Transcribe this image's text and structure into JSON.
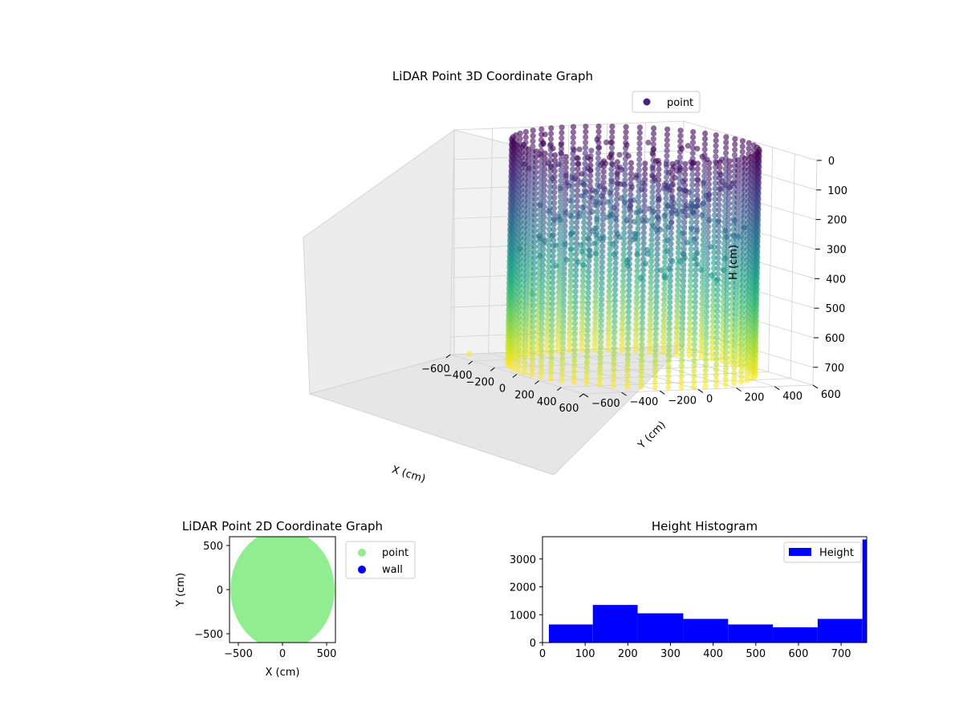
{
  "chart_data": [
    {
      "type": "scatter3d",
      "title": "LiDAR Point 3D Coordinate Graph",
      "xlabel": "X (cm)",
      "ylabel": "Y (cm)",
      "zlabel": "H (cm)",
      "xlim": [
        -600,
        600
      ],
      "ylim": [
        -600,
        600
      ],
      "zlim": [
        0,
        760
      ],
      "z_inverted": true,
      "xticks": [
        -600,
        -400,
        -200,
        0,
        200,
        400,
        600
      ],
      "yticks": [
        -600,
        -400,
        -200,
        0,
        200,
        400,
        600
      ],
      "zticks": [
        0,
        100,
        200,
        300,
        400,
        500,
        600,
        700
      ],
      "legend": {
        "position": "top-right",
        "entries": [
          {
            "label": "point",
            "color": "#482475"
          }
        ]
      },
      "colormap": "viridis",
      "color_by": "height",
      "grid": true,
      "wall_radius": 560,
      "wall_height": [
        0,
        760
      ],
      "outliers": [
        {
          "x": -560,
          "y": -120,
          "z": 60
        },
        {
          "x": -580,
          "y": -300,
          "z": 520
        },
        {
          "x": -560,
          "y": -200,
          "z": 560
        },
        {
          "x": -600,
          "y": -500,
          "z": 760
        }
      ]
    },
    {
      "type": "scatter",
      "title": "LiDAR Point 2D Coordinate Graph",
      "xlabel": "X (cm)",
      "ylabel": "Y (cm)",
      "xlim": [
        -600,
        600
      ],
      "ylim": [
        -600,
        600
      ],
      "xticks": [
        -500,
        0,
        500
      ],
      "yticks": [
        -500,
        0,
        500
      ],
      "disc_radius": 590,
      "legend": {
        "position": "outside-right",
        "entries": [
          {
            "label": "point",
            "color": "#90ee90"
          },
          {
            "label": "wall",
            "color": "#0000ff"
          }
        ]
      }
    },
    {
      "type": "histogram",
      "title": "Height Histogram",
      "xlim": [
        0,
        760
      ],
      "ylim": [
        0,
        3800
      ],
      "xticks": [
        0,
        100,
        200,
        300,
        400,
        500,
        600,
        700
      ],
      "yticks": [
        0,
        1000,
        2000,
        3000
      ],
      "color": "#0000ff",
      "legend": {
        "position": "top-right",
        "entries": [
          {
            "label": "Height",
            "color": "#0000ff"
          }
        ]
      },
      "bins": [
        {
          "from": 15,
          "to": 118,
          "count": 650
        },
        {
          "from": 118,
          "to": 223,
          "count": 1350
        },
        {
          "from": 223,
          "to": 330,
          "count": 1050
        },
        {
          "from": 330,
          "to": 435,
          "count": 850
        },
        {
          "from": 435,
          "to": 540,
          "count": 650
        },
        {
          "from": 540,
          "to": 645,
          "count": 550
        },
        {
          "from": 645,
          "to": 750,
          "count": 850
        },
        {
          "from": 750,
          "to": 760,
          "count": 3700
        }
      ]
    }
  ]
}
